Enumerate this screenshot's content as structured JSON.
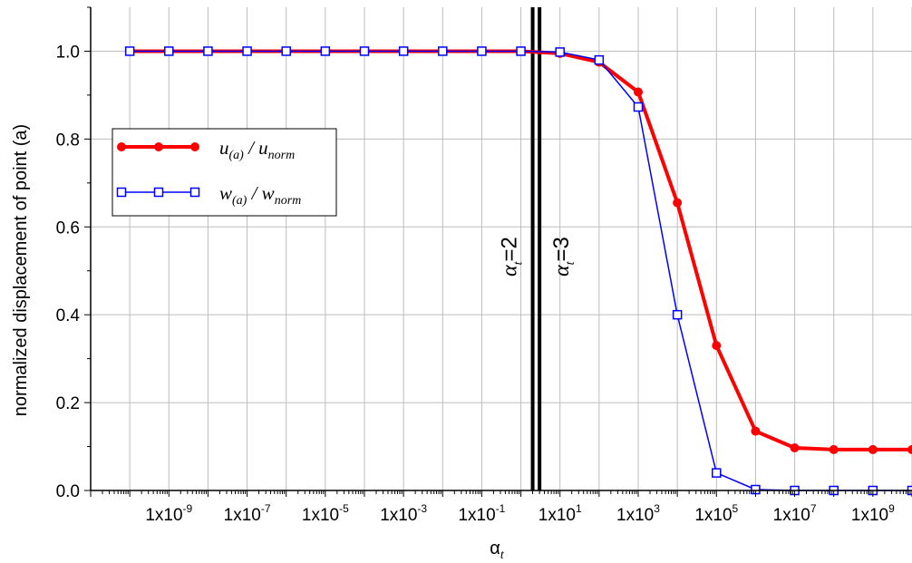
{
  "chart_data": {
    "type": "line",
    "xlabel": "α",
    "xlabel_sub": "t",
    "ylabel": "normalized displacement of point (a)",
    "xscale": "log",
    "xlim": [
      1e-11,
      10000000000.0
    ],
    "ylim": [
      0,
      1.1
    ],
    "grid": true,
    "legend_position": "upper-left",
    "x_tick_labels": [
      {
        "value": 1e-09,
        "base": "1x10",
        "exp": "-9"
      },
      {
        "value": 1e-07,
        "base": "1x10",
        "exp": "-7"
      },
      {
        "value": 1e-05,
        "base": "1x10",
        "exp": "-5"
      },
      {
        "value": 0.001,
        "base": "1x10",
        "exp": "-3"
      },
      {
        "value": 0.1,
        "base": "1x10",
        "exp": "-1"
      },
      {
        "value": 10.0,
        "base": "1x10",
        "exp": "1"
      },
      {
        "value": 1000.0,
        "base": "1x10",
        "exp": "3"
      },
      {
        "value": 100000.0,
        "base": "1x10",
        "exp": "5"
      },
      {
        "value": 10000000.0,
        "base": "1x10",
        "exp": "7"
      },
      {
        "value": 1000000000.0,
        "base": "1x10",
        "exp": "9"
      }
    ],
    "y_tick_labels": [
      "0.0",
      "0.2",
      "0.4",
      "0.6",
      "0.8",
      "1.0"
    ],
    "y_ticks": [
      0,
      0.2,
      0.4,
      0.6,
      0.8,
      1.0
    ],
    "series": [
      {
        "name": "u(a) / unorm",
        "name_main": "u",
        "name_sub": "(a)",
        "name_mid": " / u",
        "name_sub2": "norm",
        "color": "#ff0000",
        "marker": "filled-circle",
        "x": [
          1e-10,
          1e-09,
          1e-08,
          1e-07,
          1e-06,
          1e-05,
          0.0001,
          0.001,
          0.01,
          0.1,
          1.0,
          10.0,
          100.0,
          1000.0,
          10000.0,
          100000.0,
          1000000.0,
          10000000.0,
          100000000.0,
          1000000000.0,
          10000000000.0
        ],
        "y": [
          1.0,
          1.0,
          1.0,
          1.0,
          1.0,
          1.0,
          1.0,
          1.0,
          1.0,
          1.0,
          1.0,
          0.995,
          0.975,
          0.907,
          0.655,
          0.33,
          0.135,
          0.097,
          0.093,
          0.093,
          0.093
        ]
      },
      {
        "name": "w(a) / wnorm",
        "name_main": "w",
        "name_sub": "(a)",
        "name_mid": " / w",
        "name_sub2": "norm",
        "color": "#0000ff",
        "marker": "open-square",
        "x": [
          1e-10,
          1e-09,
          1e-08,
          1e-07,
          1e-06,
          1e-05,
          0.0001,
          0.001,
          0.01,
          0.1,
          1.0,
          10.0,
          100.0,
          1000.0,
          10000.0,
          100000.0,
          1000000.0,
          10000000.0,
          100000000.0,
          1000000000.0,
          10000000000.0
        ],
        "y": [
          1.0,
          1.0,
          1.0,
          1.0,
          1.0,
          1.0,
          1.0,
          1.0,
          1.0,
          1.0,
          1.0,
          0.998,
          0.98,
          0.873,
          0.4,
          0.04,
          0.002,
          0.0,
          0.0,
          0.0,
          0.0
        ]
      }
    ],
    "vertical_lines": [
      {
        "x": 2,
        "label_main": "α",
        "label_sub": "t",
        "label_rest": "=2"
      },
      {
        "x": 3,
        "label_main": "α",
        "label_sub": "t",
        "label_rest": "=3"
      }
    ]
  }
}
